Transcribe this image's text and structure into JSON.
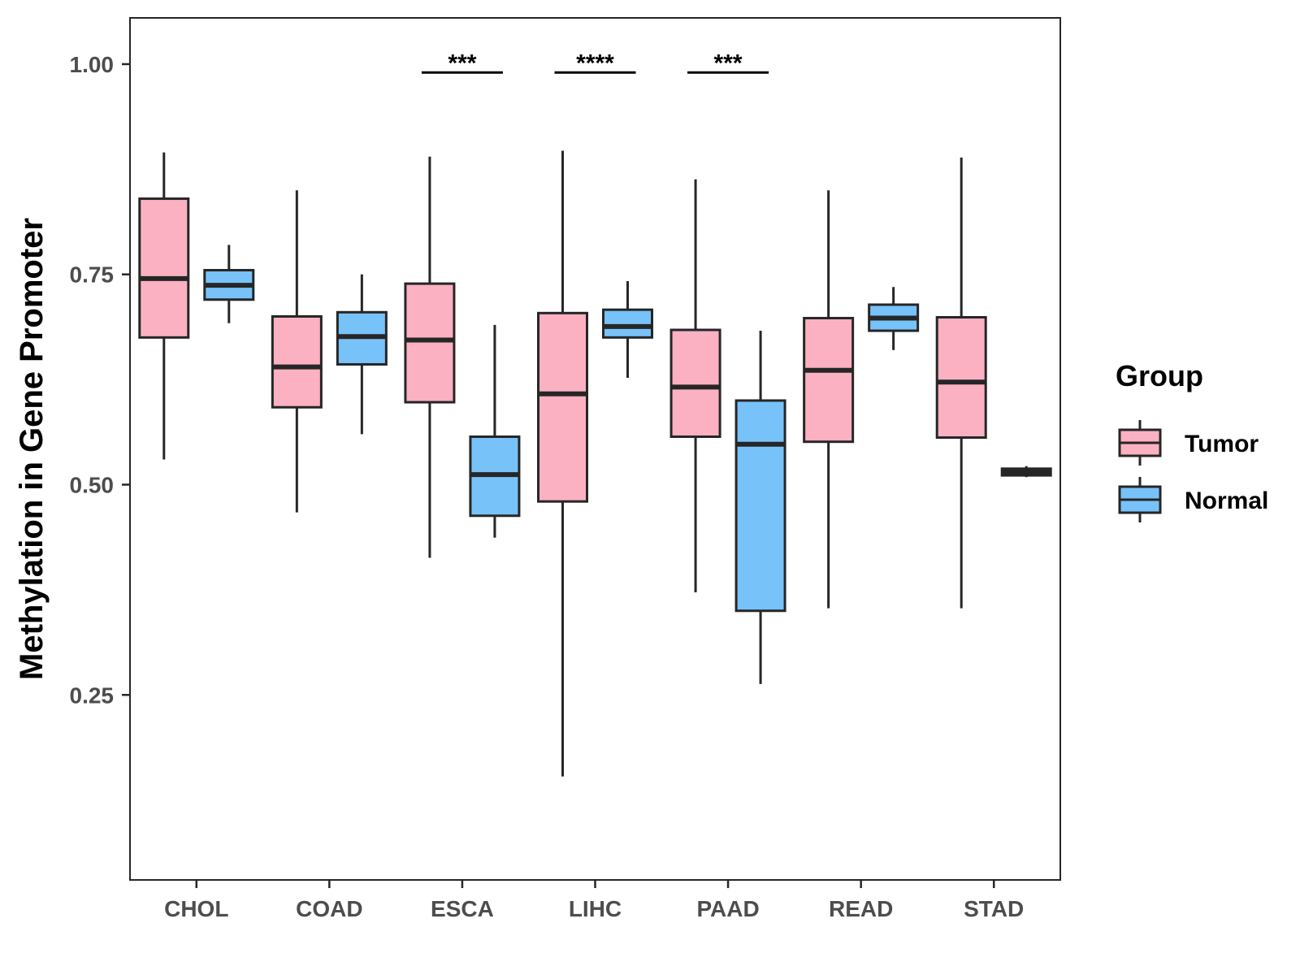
{
  "chart_data": {
    "type": "boxplot",
    "title": "",
    "xlabel": "",
    "ylabel": "Methylation in Gene Promoter",
    "ylim": [
      0.03,
      1.055
    ],
    "yticks": [
      0.25,
      0.5,
      0.75,
      1.0
    ],
    "ytick_labels": [
      "0.25",
      "0.50",
      "0.75",
      "1.00"
    ],
    "categories": [
      "CHOL",
      "COAD",
      "ESCA",
      "LIHC",
      "PAAD",
      "READ",
      "STAD"
    ],
    "legend": {
      "title": "Group",
      "position": "right",
      "entries": [
        {
          "name": "Tumor",
          "color": "#fbb1c2"
        },
        {
          "name": "Normal",
          "color": "#78c2fa"
        }
      ]
    },
    "series": [
      {
        "name": "Tumor",
        "color": "#fbb1c2",
        "boxes": [
          {
            "category": "CHOL",
            "whisker_low": 0.53,
            "q1": 0.675,
            "median": 0.745,
            "q3": 0.84,
            "whisker_high": 0.895
          },
          {
            "category": "COAD",
            "whisker_low": 0.467,
            "q1": 0.592,
            "median": 0.64,
            "q3": 0.7,
            "whisker_high": 0.85
          },
          {
            "category": "ESCA",
            "whisker_low": 0.413,
            "q1": 0.598,
            "median": 0.672,
            "q3": 0.739,
            "whisker_high": 0.89
          },
          {
            "category": "LIHC",
            "whisker_low": 0.153,
            "q1": 0.48,
            "median": 0.608,
            "q3": 0.704,
            "whisker_high": 0.897
          },
          {
            "category": "PAAD",
            "whisker_low": 0.372,
            "q1": 0.557,
            "median": 0.616,
            "q3": 0.684,
            "whisker_high": 0.863
          },
          {
            "category": "READ",
            "whisker_low": 0.353,
            "q1": 0.551,
            "median": 0.636,
            "q3": 0.698,
            "whisker_high": 0.85
          },
          {
            "category": "STAD",
            "whisker_low": 0.353,
            "q1": 0.556,
            "median": 0.622,
            "q3": 0.699,
            "whisker_high": 0.889
          }
        ]
      },
      {
        "name": "Normal",
        "color": "#78c2fa",
        "boxes": [
          {
            "category": "CHOL",
            "whisker_low": 0.692,
            "q1": 0.72,
            "median": 0.737,
            "q3": 0.755,
            "whisker_high": 0.785
          },
          {
            "category": "COAD",
            "whisker_low": 0.56,
            "q1": 0.643,
            "median": 0.676,
            "q3": 0.705,
            "whisker_high": 0.75
          },
          {
            "category": "ESCA",
            "whisker_low": 0.437,
            "q1": 0.463,
            "median": 0.512,
            "q3": 0.557,
            "whisker_high": 0.69
          },
          {
            "category": "LIHC",
            "whisker_low": 0.627,
            "q1": 0.675,
            "median": 0.688,
            "q3": 0.708,
            "whisker_high": 0.742
          },
          {
            "category": "PAAD",
            "whisker_low": 0.263,
            "q1": 0.35,
            "median": 0.548,
            "q3": 0.6,
            "whisker_high": 0.683
          },
          {
            "category": "READ",
            "whisker_low": 0.66,
            "q1": 0.683,
            "median": 0.698,
            "q3": 0.714,
            "whisker_high": 0.735
          },
          {
            "category": "STAD",
            "whisker_low": 0.509,
            "q1": 0.511,
            "median": 0.515,
            "q3": 0.519,
            "whisker_high": 0.522
          }
        ]
      }
    ],
    "annotations": [
      {
        "category": "ESCA",
        "label": "***",
        "y": 0.99
      },
      {
        "category": "LIHC",
        "label": "****",
        "y": 0.99
      },
      {
        "category": "PAAD",
        "label": "***",
        "y": 0.99
      }
    ]
  }
}
